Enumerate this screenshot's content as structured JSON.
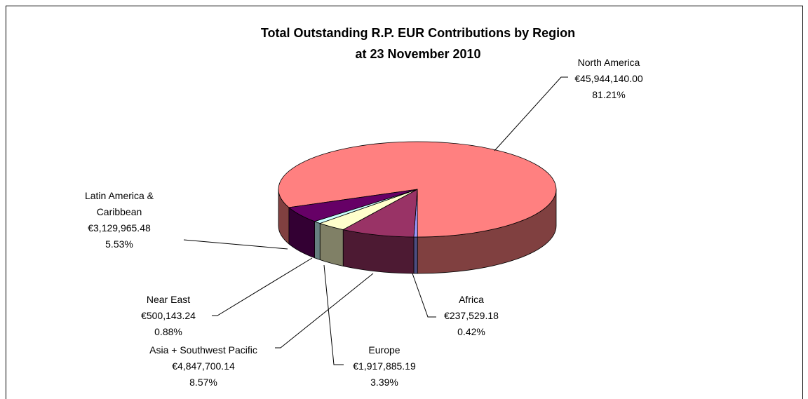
{
  "chart_data": {
    "type": "pie",
    "title": "Total Outstanding R.P. EUR Contributions by Region",
    "subtitle": "at 23 November 2010",
    "categories": [
      "North America",
      "Africa",
      "Asia + Southwest Pacific",
      "Europe",
      "Near East",
      "Latin America & Caribbean"
    ],
    "values": [
      45944140.0,
      237529.18,
      4847700.14,
      1917885.19,
      500143.24,
      3129965.48
    ],
    "value_labels": [
      "€45,944,140.00",
      "€237,529.18",
      "€4,847,700.14",
      "€1,917,885.19",
      "€500,143.24",
      "€3,129,965.48"
    ],
    "percentages": [
      81.21,
      0.42,
      8.57,
      3.39,
      0.88,
      5.53
    ],
    "percentage_labels": [
      "81.21%",
      "0.42%",
      "8.57%",
      "3.39%",
      "0.88%",
      "5.53%"
    ],
    "colors": [
      "#ff8080",
      "#9999ff",
      "#993366",
      "#ffffcc",
      "#ccffff",
      "#660066"
    ]
  }
}
